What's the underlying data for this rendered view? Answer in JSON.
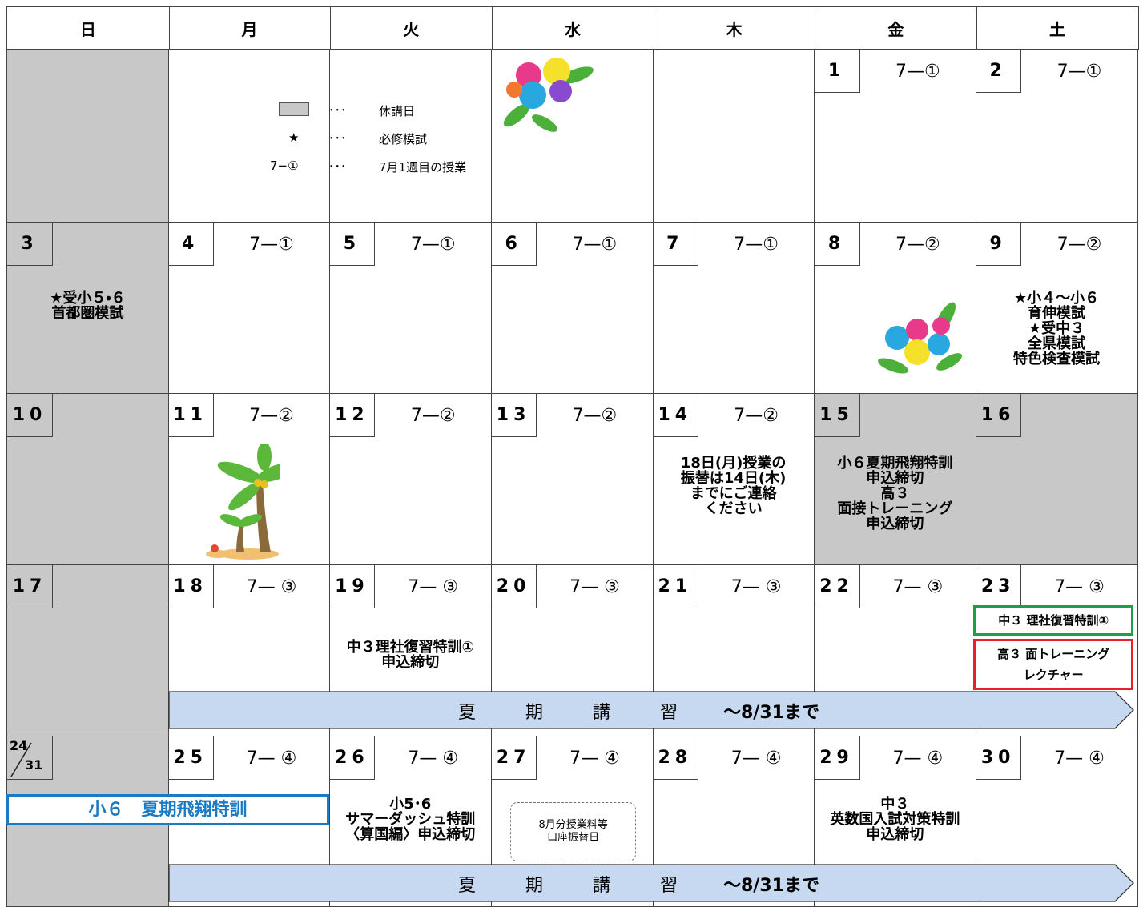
{
  "header": {
    "days": [
      "日",
      "月",
      "火",
      "水",
      "木",
      "金",
      "土"
    ]
  },
  "legend": {
    "dots": "･･･",
    "items": [
      {
        "label": "休講日"
      },
      {
        "symbol": "★",
        "label": "必修模試"
      },
      {
        "symbol": "7−①",
        "label": "7月1週目の授業"
      }
    ]
  },
  "weeks": [
    {
      "cells": [
        {
          "closed": true
        },
        null,
        null,
        null,
        null,
        {
          "day": "1",
          "lesson": "7—①"
        },
        {
          "day": "2",
          "lesson": "7—①"
        }
      ]
    },
    {
      "cells": [
        {
          "day": "3",
          "closed": true,
          "note": [
            "★受小５・６",
            "首都圏模試"
          ]
        },
        {
          "day": "4",
          "lesson": "7—①"
        },
        {
          "day": "5",
          "lesson": "7—①"
        },
        {
          "day": "6",
          "lesson": "7—①"
        },
        {
          "day": "7",
          "lesson": "7—①"
        },
        {
          "day": "8",
          "lesson": "7—②"
        },
        {
          "day": "9",
          "lesson": "7—②",
          "note": [
            "★小４〜小６",
            "育伸模試",
            "★受中３",
            "全県模試",
            "特色検査模試"
          ]
        }
      ]
    },
    {
      "cells": [
        {
          "day": "10",
          "closed": true
        },
        {
          "day": "11",
          "lesson": "7—②"
        },
        {
          "day": "12",
          "lesson": "7—②"
        },
        {
          "day": "13",
          "lesson": "7—②"
        },
        {
          "day": "14",
          "lesson": "7—②",
          "note": [
            "18日(月)授業の",
            "振替は14日(木)",
            "までにご連絡",
            "ください"
          ]
        },
        {
          "day": "15",
          "closed": true,
          "note": [
            "小６夏期飛翔特訓",
            "申込締切",
            "高３",
            "面接トレーニング",
            "申込締切"
          ]
        },
        {
          "day": "16",
          "closed": true
        }
      ]
    },
    {
      "cells": [
        {
          "day": "17",
          "closed": true
        },
        {
          "day": "18",
          "lesson": "7— ③"
        },
        {
          "day": "19",
          "lesson": "7— ③",
          "note": [
            "中３理社復習特訓①",
            "申込締切"
          ]
        },
        {
          "day": "20",
          "lesson": "7— ③"
        },
        {
          "day": "21",
          "lesson": "7— ③"
        },
        {
          "day": "22",
          "lesson": "7— ③"
        },
        {
          "day": "23",
          "lesson": "7— ③",
          "boxes": [
            {
              "lines": [
                "中３ 理社復習特訓①"
              ],
              "color": "#1aa04a"
            },
            {
              "lines": [
                "高３ 面トレーニング",
                "レクチャー"
              ],
              "color": "#e8202a"
            }
          ]
        }
      ],
      "banner": {
        "title": "夏期講習",
        "until": "〜8/31まで"
      }
    },
    {
      "cells": [
        {
          "day": "24",
          "day_alt": "31",
          "closed": true
        },
        {
          "day": "25",
          "lesson": "7— ④"
        },
        {
          "day": "26",
          "lesson": "7— ④",
          "note": [
            "小5･6",
            "サマーダッシュ特訓",
            "〈算国編〉申込締切"
          ]
        },
        {
          "day": "27",
          "lesson": "7— ④",
          "boxes": [
            {
              "lines": [
                "8月分授業料等",
                "口座振替日"
              ],
              "color": "#777",
              "dashed": true
            }
          ]
        },
        {
          "day": "28",
          "lesson": "7— ④"
        },
        {
          "day": "29",
          "lesson": "7— ④",
          "note": [
            "中３",
            "英数国入試対策特訓",
            "申込締切"
          ]
        },
        {
          "day": "30",
          "lesson": "7— ④"
        }
      ],
      "strip": {
        "text": "小６　夏期飛翔特訓",
        "color": "#1a7bc4"
      },
      "banner": {
        "title": "夏期講習",
        "until": "〜8/31まで"
      }
    }
  ]
}
